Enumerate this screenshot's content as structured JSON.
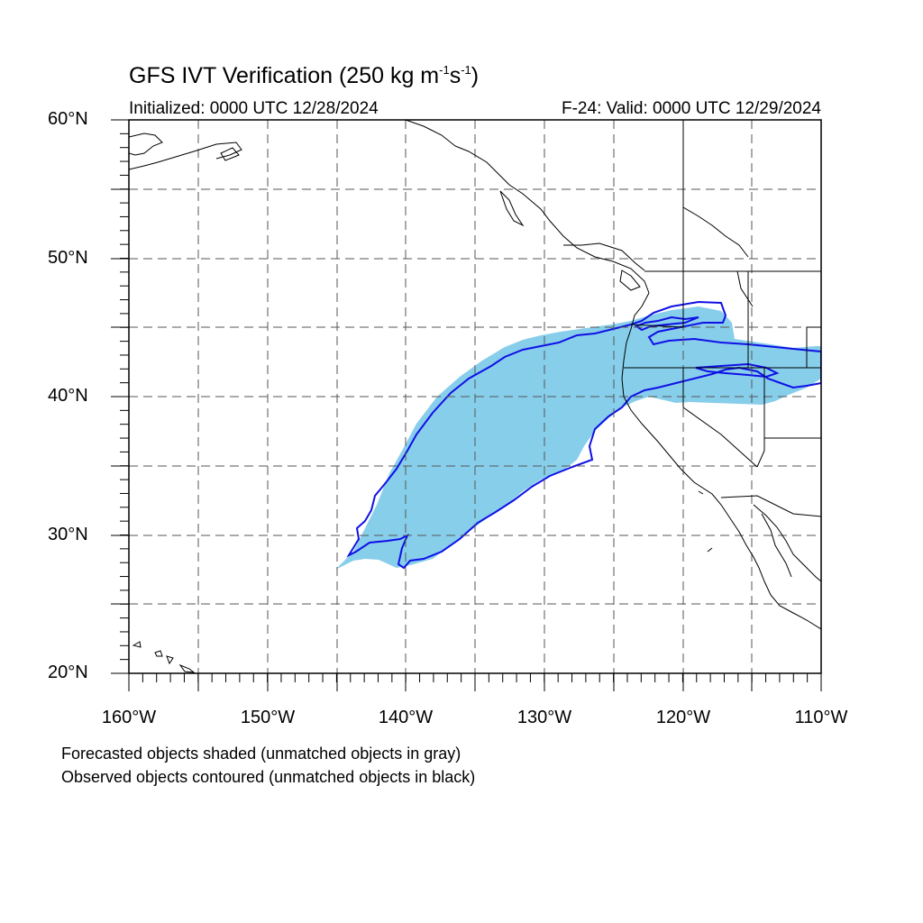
{
  "title_main": "GFS IVT Verification (250 kg m",
  "title_exp1": "-1",
  "title_mid": "s",
  "title_exp2": "-1",
  "title_end": ")",
  "initialized": "Initialized: 0000 UTC 12/28/2024",
  "valid": "F-24: Valid: 0000 UTC 12/29/2024",
  "lat_labels": [
    "60°N",
    "50°N",
    "40°N",
    "30°N",
    "20°N"
  ],
  "lon_labels": [
    "160°W",
    "150°W",
    "140°W",
    "130°W",
    "120°W",
    "110°W"
  ],
  "legend": {
    "forecast": "Forecasted objects shaded (unmatched objects in gray)",
    "observed": "Observed objects contoured (unmatched objects in black)"
  },
  "colors": {
    "forecast_fill": "#87ceeb",
    "observed_contour": "#1010e6",
    "coastline": "#000000",
    "grid": "#555555"
  },
  "map_extent": {
    "lon_min": -160,
    "lon_max": -110,
    "lat_min": 20,
    "lat_max": 60
  }
}
